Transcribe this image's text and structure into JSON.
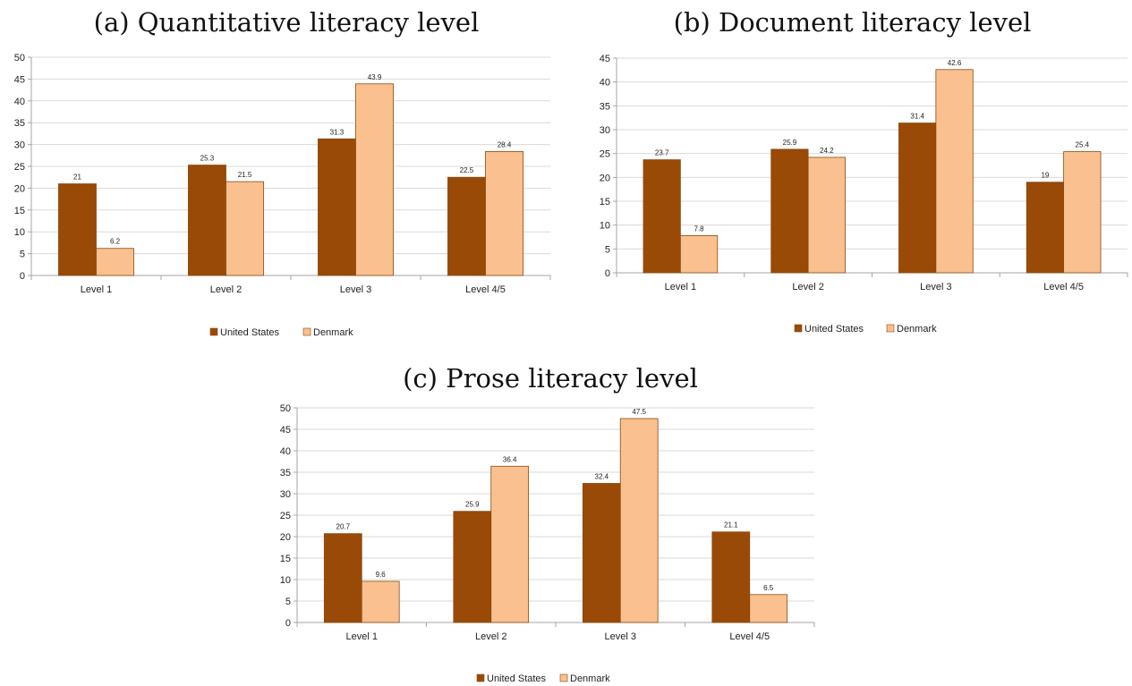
{
  "colors": {
    "united_states": "#994a06",
    "denmark": "#fac08f",
    "edge": "#8a4a10",
    "grid": "#d9d9d9",
    "axis": "#a6a6a6"
  },
  "chart_data": [
    {
      "type": "bar",
      "title": "(a) Quantitative literacy level",
      "categories": [
        "Level 1",
        "Level 2",
        "Level 3",
        "Level 4/5"
      ],
      "series": [
        {
          "name": "United States",
          "values": [
            21,
            25.3,
            31.3,
            22.5
          ],
          "labels": [
            "21",
            "25.3",
            "31.3",
            "22.5"
          ]
        },
        {
          "name": "Denmark",
          "values": [
            6.2,
            21.5,
            43.9,
            28.4
          ],
          "labels": [
            "6.2",
            "21.5",
            "43.9",
            "28.4"
          ]
        }
      ],
      "ylim": [
        0,
        50
      ],
      "yticks": [
        0,
        5,
        10,
        15,
        20,
        25,
        30,
        35,
        40,
        45,
        50
      ],
      "grid": true,
      "legend": "bottom"
    },
    {
      "type": "bar",
      "title": "(b) Document literacy level",
      "categories": [
        "Level 1",
        "Level 2",
        "Level 3",
        "Level 4/5"
      ],
      "series": [
        {
          "name": "United States",
          "values": [
            23.7,
            25.9,
            31.4,
            19
          ],
          "labels": [
            "23.7",
            "25.9",
            "31.4",
            "19"
          ]
        },
        {
          "name": "Denmark",
          "values": [
            7.8,
            24.2,
            42.6,
            25.4
          ],
          "labels": [
            "7.8",
            "24.2",
            "42.6",
            "25.4"
          ]
        }
      ],
      "ylim": [
        0,
        45
      ],
      "yticks": [
        0,
        5,
        10,
        15,
        20,
        25,
        30,
        35,
        40,
        45
      ],
      "grid": true,
      "legend": "bottom"
    },
    {
      "type": "bar",
      "title": "(c) Prose literacy level",
      "categories": [
        "Level 1",
        "Level 2",
        "Level 3",
        "Level 4/5"
      ],
      "series": [
        {
          "name": "United States",
          "values": [
            20.7,
            25.9,
            32.4,
            21.1
          ],
          "labels": [
            "20.7",
            "25.9",
            "32.4",
            "21.1"
          ]
        },
        {
          "name": "Denmark",
          "values": [
            9.6,
            36.4,
            47.5,
            6.5
          ],
          "labels": [
            "9.6",
            "36.4",
            "47.5",
            "6.5"
          ]
        }
      ],
      "ylim": [
        0,
        50
      ],
      "yticks": [
        0,
        5,
        10,
        15,
        20,
        25,
        30,
        35,
        40,
        45,
        50
      ],
      "grid": true,
      "legend": "bottom"
    }
  ]
}
